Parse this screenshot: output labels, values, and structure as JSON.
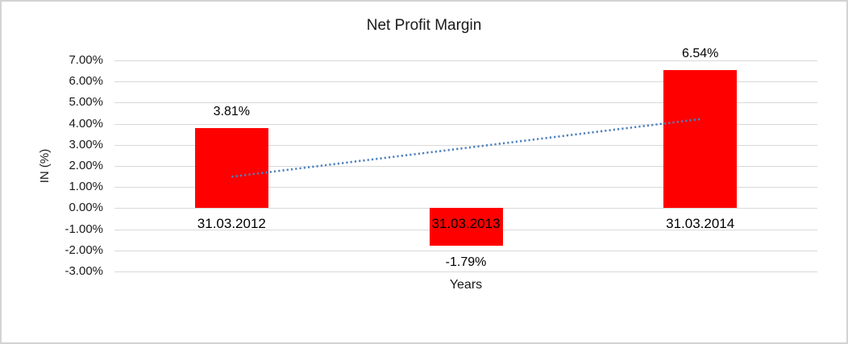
{
  "window": {
    "background": "#ffffff",
    "border_color": "#d3d3d3"
  },
  "chart_data": {
    "type": "bar",
    "title": "Net Profit Margin",
    "categories": [
      "31.03.2012",
      "31.03.2013",
      "31.03.2014"
    ],
    "values": [
      3.81,
      -1.79,
      6.54
    ],
    "data_labels": [
      "3.81%",
      "-1.79%",
      "6.54%"
    ],
    "xlabel": "Years",
    "ylabel": "IN (%)",
    "ylim": [
      -3,
      7
    ],
    "yticks": [
      {
        "value": 7,
        "label": "7.00%"
      },
      {
        "value": 6,
        "label": "6.00%"
      },
      {
        "value": 5,
        "label": "5.00%"
      },
      {
        "value": 4,
        "label": "4.00%"
      },
      {
        "value": 3,
        "label": "3.00%"
      },
      {
        "value": 2,
        "label": "2.00%"
      },
      {
        "value": 1,
        "label": "1.00%"
      },
      {
        "value": 0,
        "label": "0.00%"
      },
      {
        "value": -1,
        "label": "-1.00%"
      },
      {
        "value": -2,
        "label": "-2.00%"
      },
      {
        "value": -3,
        "label": "-3.00%"
      }
    ],
    "grid": true,
    "legend": "none",
    "bar_color": "#ff0000",
    "gridline_color": "#d9d9d9",
    "trendline": {
      "type": "linear",
      "style": "dotted",
      "color": "#4e81bd",
      "start_value": 1.49,
      "end_value": 4.22
    }
  }
}
